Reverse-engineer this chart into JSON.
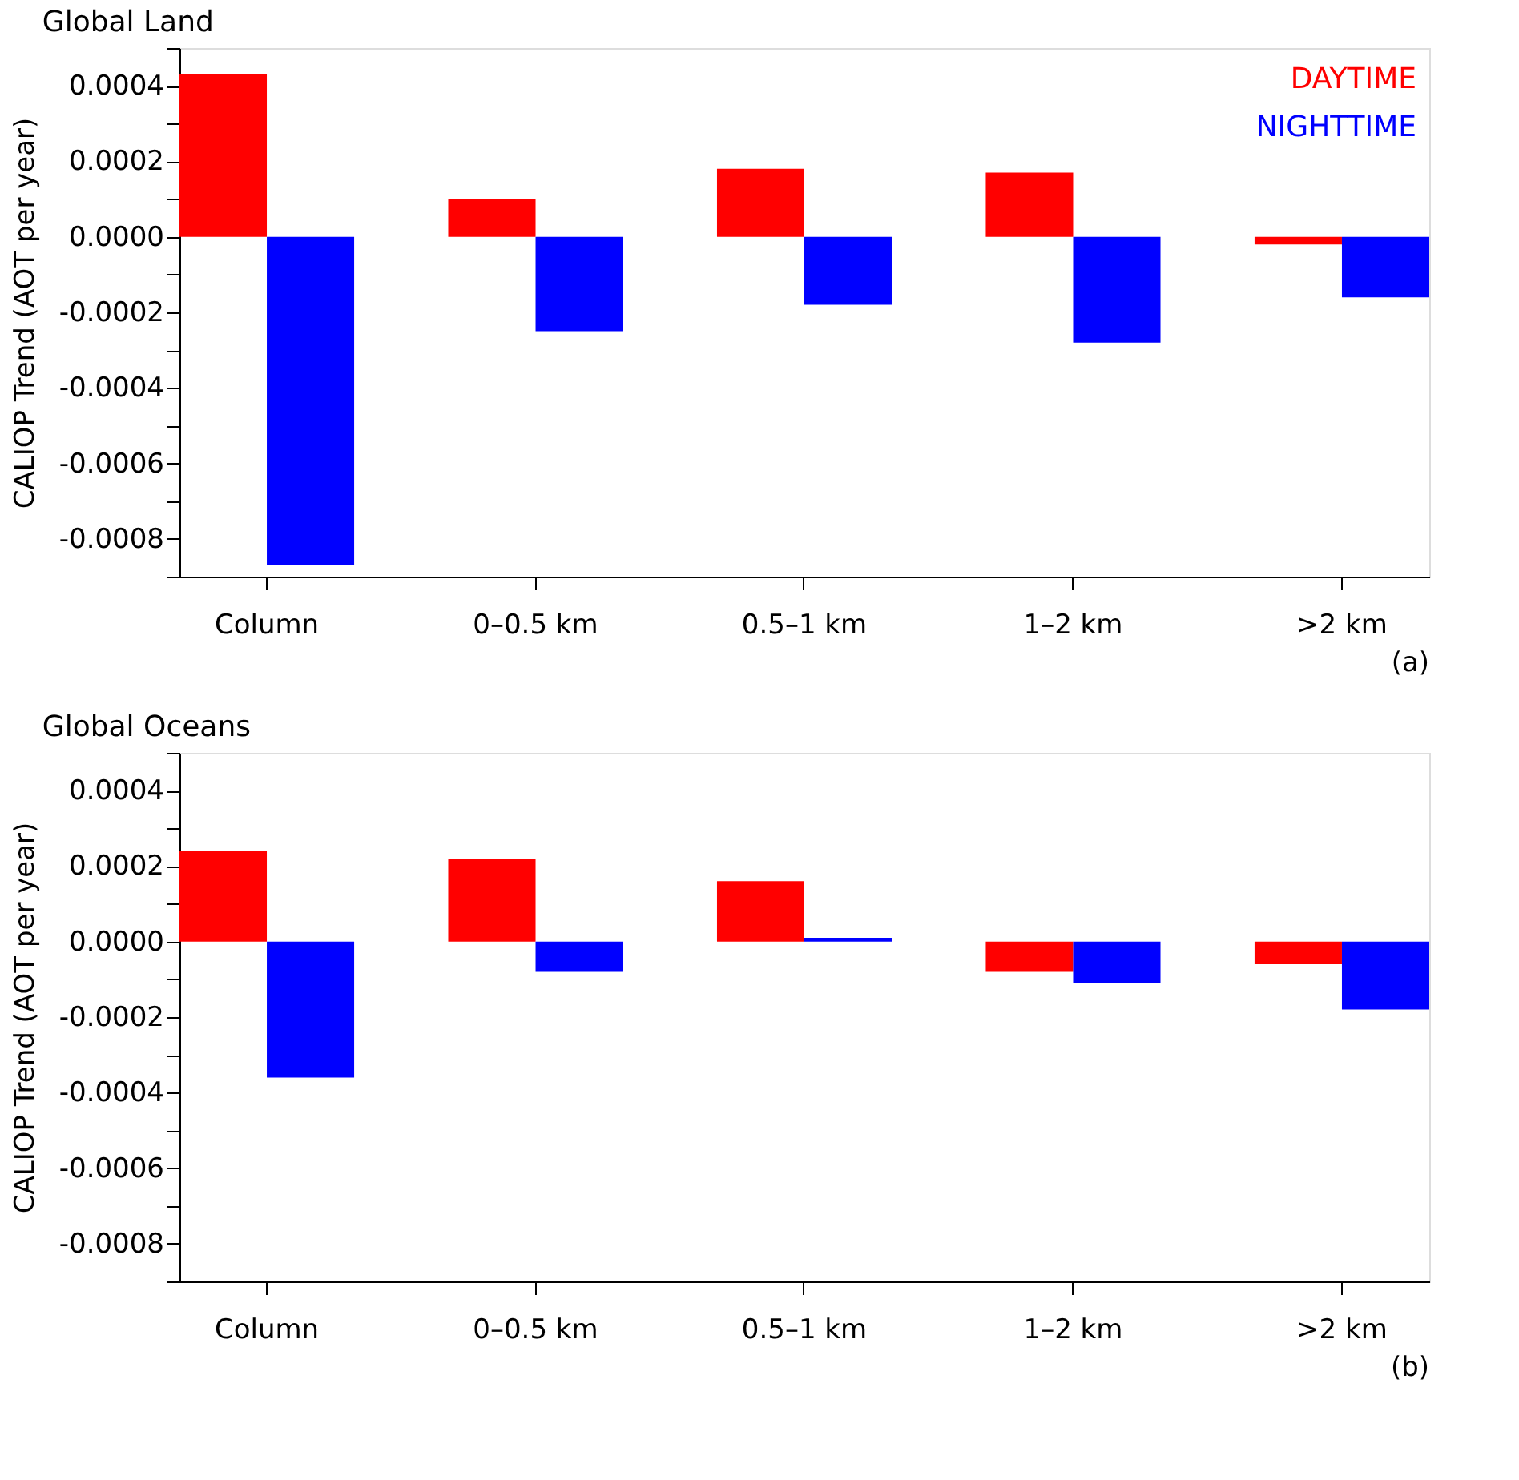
{
  "chart_data": [
    {
      "type": "bar",
      "title": "Global Land",
      "ylabel": "CALIOP Trend (AOT per year)",
      "categories": [
        "Column",
        "0–0.5 km",
        "0.5–1 km",
        "1–2 km",
        ">2 km"
      ],
      "series": [
        {
          "name": "DAYTIME",
          "color": "#ff0000",
          "values": [
            0.00043,
            0.0001,
            0.00018,
            0.00017,
            -2e-05
          ]
        },
        {
          "name": "NIGHTTIME",
          "color": "#0000ff",
          "values": [
            -0.00087,
            -0.00025,
            -0.00018,
            -0.00028,
            -0.00016
          ]
        }
      ],
      "ylim": [
        -0.0009,
        0.0005
      ],
      "yticks": [
        {
          "value": -0.0009,
          "label": null
        },
        -0.0008,
        {
          "value": -0.0007,
          "label": null
        },
        -0.0006,
        {
          "value": -0.0005,
          "label": null
        },
        -0.0004,
        {
          "value": -0.0003,
          "label": null
        },
        -0.0002,
        {
          "value": -0.0001,
          "label": null
        },
        {
          "value": 0,
          "label": "0.0000"
        },
        {
          "value": 0.0001,
          "label": null
        },
        0.0002,
        {
          "value": 0.0003,
          "label": null
        },
        0.0004,
        {
          "value": 0.0005,
          "label": null
        }
      ],
      "legend": "top right",
      "annotations": [
        "(a)"
      ]
    },
    {
      "type": "bar",
      "title": "Global Oceans",
      "ylabel": "CALIOP Trend (AOT per year)",
      "categories": [
        "Column",
        "0–0.5 km",
        "0.5–1 km",
        "1–2 km",
        ">2 km"
      ],
      "series": [
        {
          "color": "#ff0000",
          "values": [
            0.00024,
            0.00022,
            0.00016,
            -8e-05,
            -6e-05
          ]
        },
        {
          "color": "#0000ff",
          "values": [
            -0.00036,
            -8e-05,
            1e-05,
            -0.00011,
            -0.00018
          ]
        }
      ],
      "ylim": [
        -0.0009,
        0.0005
      ],
      "yticks": [
        {
          "value": -0.0009,
          "label": null
        },
        -0.0008,
        {
          "value": -0.0007,
          "label": null
        },
        -0.0006,
        {
          "value": -0.0005,
          "label": null
        },
        -0.0004,
        {
          "value": -0.0003,
          "label": null
        },
        -0.0002,
        {
          "value": -0.0001,
          "label": null
        },
        {
          "value": 0,
          "label": "0.0000"
        },
        {
          "value": 0.0001,
          "label": null
        },
        0.0002,
        {
          "value": 0.0003,
          "label": null
        },
        0.0004,
        {
          "value": 0.0005,
          "label": null
        }
      ],
      "legend": false,
      "annotations": [
        "(b)"
      ]
    }
  ]
}
